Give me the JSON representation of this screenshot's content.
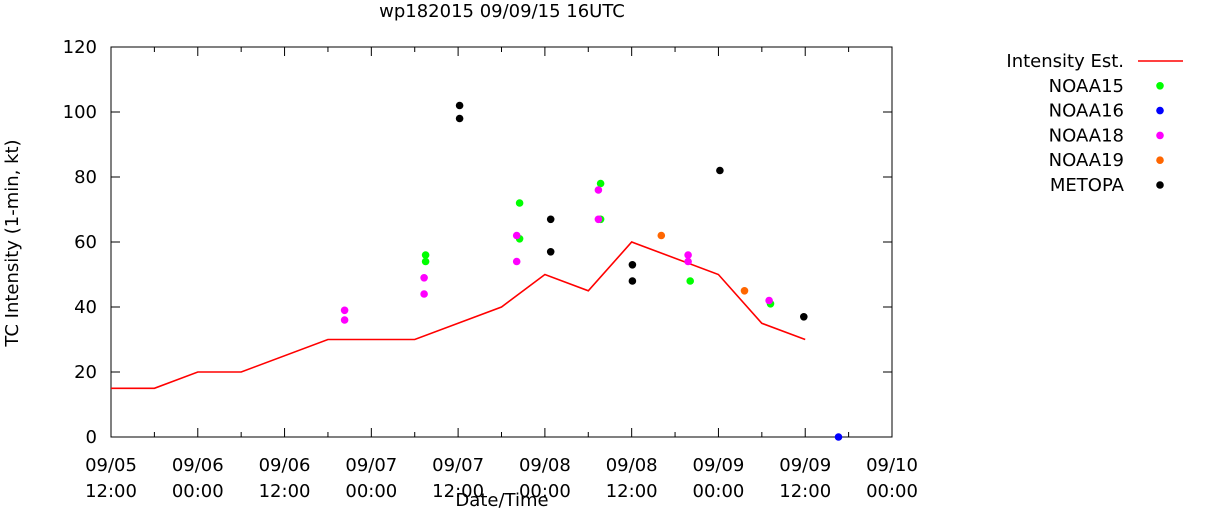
{
  "chart_data": {
    "type": "scatter",
    "title": "wp182015 09/09/15 16UTC",
    "xlabel": "Date/Time",
    "ylabel": "TC Intensity (1-min, kt)",
    "ylim": [
      0,
      120
    ],
    "yticks": [
      0,
      20,
      40,
      60,
      80,
      100,
      120
    ],
    "xlim_hours": [
      0,
      108
    ],
    "xticks": [
      {
        "line1": "09/05",
        "line2": "12:00"
      },
      {
        "line1": "09/06",
        "line2": "00:00"
      },
      {
        "line1": "09/06",
        "line2": "12:00"
      },
      {
        "line1": "09/07",
        "line2": "00:00"
      },
      {
        "line1": "09/07",
        "line2": "12:00"
      },
      {
        "line1": "09/08",
        "line2": "00:00"
      },
      {
        "line1": "09/08",
        "line2": "12:00"
      },
      {
        "line1": "09/09",
        "line2": "00:00"
      },
      {
        "line1": "09/09",
        "line2": "12:00"
      },
      {
        "line1": "09/10",
        "line2": "00:00"
      }
    ],
    "legend_position": "right",
    "series": [
      {
        "name": "Intensity Est.",
        "kind": "line",
        "color": "#ff0000",
        "points": [
          [
            0,
            15
          ],
          [
            6,
            15
          ],
          [
            12,
            20
          ],
          [
            18,
            20
          ],
          [
            30,
            30
          ],
          [
            42,
            30
          ],
          [
            54,
            40
          ],
          [
            60,
            50
          ],
          [
            66,
            45
          ],
          [
            72,
            60
          ],
          [
            84,
            50
          ],
          [
            90,
            35
          ],
          [
            96,
            30
          ]
        ]
      },
      {
        "name": "NOAA15",
        "kind": "scatter",
        "color": "#00ff00",
        "points": [
          [
            43.5,
            54
          ],
          [
            43.5,
            56
          ],
          [
            56.5,
            72
          ],
          [
            56.5,
            61
          ],
          [
            67.7,
            78
          ],
          [
            67.7,
            67
          ],
          [
            80.1,
            48
          ],
          [
            91.2,
            41
          ]
        ]
      },
      {
        "name": "NOAA16",
        "kind": "scatter",
        "color": "#0000ff",
        "points": [
          [
            100.6,
            0
          ]
        ]
      },
      {
        "name": "NOAA18",
        "kind": "scatter",
        "color": "#ff00ff",
        "points": [
          [
            32.3,
            39
          ],
          [
            32.3,
            36
          ],
          [
            43.3,
            49
          ],
          [
            43.3,
            44
          ],
          [
            56.1,
            62
          ],
          [
            56.1,
            54
          ],
          [
            67.4,
            76
          ],
          [
            67.4,
            67
          ],
          [
            79.8,
            56
          ],
          [
            79.8,
            54
          ],
          [
            91,
            42
          ]
        ]
      },
      {
        "name": "NOAA19",
        "kind": "scatter",
        "color": "#ff6600",
        "points": [
          [
            76.1,
            62
          ],
          [
            87.6,
            45
          ]
        ]
      },
      {
        "name": "METOPA",
        "kind": "scatter",
        "color": "#000000",
        "points": [
          [
            48.2,
            102
          ],
          [
            48.2,
            98
          ],
          [
            60.8,
            67
          ],
          [
            60.8,
            57
          ],
          [
            72.1,
            53
          ],
          [
            72.1,
            48
          ],
          [
            84.2,
            82
          ],
          [
            95.8,
            37
          ]
        ]
      }
    ]
  }
}
